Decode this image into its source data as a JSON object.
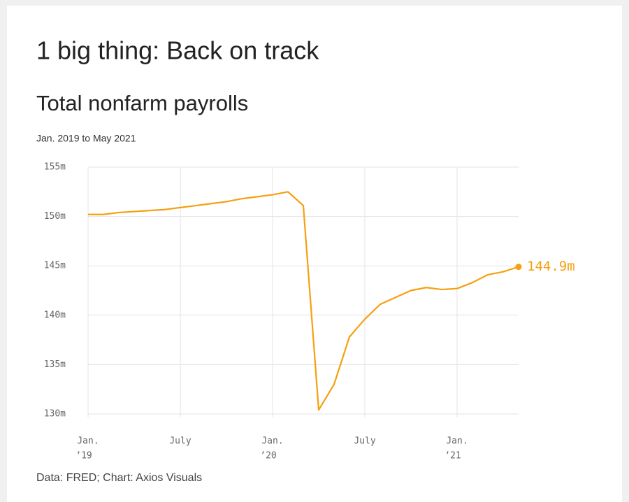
{
  "header": {
    "title": "1 big thing: Back on track"
  },
  "chart_data": {
    "type": "line",
    "title": "Total nonfarm payrolls",
    "subtitle": "Jan. 2019 to May 2021",
    "source": "Data: FRED; Chart: Axios Visuals",
    "x": [
      "2019-01",
      "2019-02",
      "2019-03",
      "2019-04",
      "2019-05",
      "2019-06",
      "2019-07",
      "2019-08",
      "2019-09",
      "2019-10",
      "2019-11",
      "2019-12",
      "2020-01",
      "2020-02",
      "2020-03",
      "2020-04",
      "2020-05",
      "2020-06",
      "2020-07",
      "2020-08",
      "2020-09",
      "2020-10",
      "2020-11",
      "2020-12",
      "2021-01",
      "2021-02",
      "2021-03",
      "2021-04",
      "2021-05"
    ],
    "series": [
      {
        "name": "Total nonfarm payrolls",
        "color": "#f5a00f",
        "values": [
          150.2,
          150.2,
          150.4,
          150.5,
          150.6,
          150.7,
          150.9,
          151.1,
          151.3,
          151.5,
          151.8,
          152.0,
          152.2,
          152.5,
          151.1,
          130.4,
          133.0,
          137.8,
          139.6,
          141.1,
          141.8,
          142.5,
          142.8,
          142.6,
          142.7,
          143.3,
          144.1,
          144.4,
          144.9
        ],
        "value_labels": [
          null,
          null,
          null,
          null,
          null,
          null,
          null,
          null,
          null,
          null,
          null,
          null,
          null,
          null,
          null,
          null,
          null,
          null,
          null,
          null,
          null,
          null,
          null,
          null,
          null,
          null,
          null,
          null,
          "144.9m"
        ]
      }
    ],
    "xlim": [
      "2019-01",
      "2021-05"
    ],
    "xticks": [
      {
        "value": "2019-01",
        "label": "Jan.",
        "year": "’19"
      },
      {
        "value": "2019-07",
        "label": "July"
      },
      {
        "value": "2020-01",
        "label": "Jan.",
        "year": "’20"
      },
      {
        "value": "2020-07",
        "label": "July"
      },
      {
        "value": "2021-01",
        "label": "Jan.",
        "year": "’21"
      }
    ],
    "ylim": [
      130,
      155
    ],
    "yticks": [
      {
        "value": 130,
        "label": "130m"
      },
      {
        "value": 135,
        "label": "135m"
      },
      {
        "value": 140,
        "label": "140m"
      },
      {
        "value": 145,
        "label": "145m"
      },
      {
        "value": 150,
        "label": "150m"
      },
      {
        "value": 155,
        "label": "155m"
      }
    ],
    "grid": true
  }
}
